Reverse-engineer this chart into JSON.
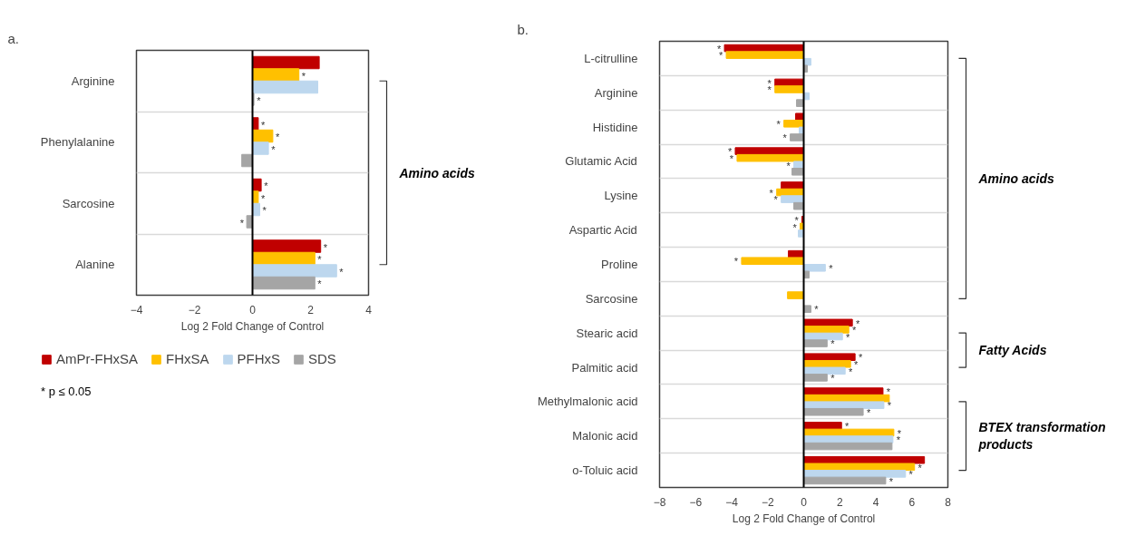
{
  "chart_data": [
    {
      "type": "bar",
      "orientation": "horizontal",
      "title": "a.",
      "xlabel": "Log 2 Fold Change of Control",
      "categories": [
        "Arginine",
        "Phenylalanine",
        "Sarcosine",
        "Alanine"
      ],
      "series": [
        {
          "name": "AmPr-FHxSA",
          "color": "#c00000",
          "values": [
            2.3,
            0.2,
            0.3,
            2.35
          ],
          "value_labels": [
            null,
            "*",
            "*",
            "*"
          ]
        },
        {
          "name": "FHxSA",
          "color": "#ffc000",
          "values": [
            1.6,
            0.7,
            0.2,
            2.15
          ],
          "value_labels": [
            "*",
            "*",
            "*",
            "*"
          ]
        },
        {
          "name": "PFHxS",
          "color": "#bdd7ee",
          "values": [
            2.25,
            0.55,
            0.25,
            2.9
          ],
          "value_labels": [
            null,
            "*",
            "*",
            "*"
          ]
        },
        {
          "name": "SDS",
          "color": "#a5a5a5",
          "values": [
            0.05,
            -0.37,
            -0.2,
            2.15
          ],
          "value_labels": [
            "*",
            null,
            "*",
            "*"
          ]
        }
      ],
      "xlim": [
        -4,
        4
      ],
      "xticks": [
        -4,
        -2,
        0,
        2,
        4
      ],
      "grid": "y",
      "legend": "bottom",
      "ref_lines": [
        {
          "axis": "x",
          "value": 0,
          "color": "#000000"
        }
      ],
      "annotations": [
        "Amino acids",
        "* p ≤ 0.05"
      ]
    },
    {
      "type": "bar",
      "orientation": "horizontal",
      "title": "b.",
      "xlabel": "Log 2 Fold Change of Control",
      "categories": [
        "L-citrulline",
        "Arginine",
        "Histidine",
        "Glutamic Acid",
        "Lysine",
        "Aspartic Acid",
        "Proline",
        "Sarcosine",
        "Stearic acid",
        "Palmitic acid",
        "Methylmalonic acid",
        "Malonic acid",
        "o-Toluic acid"
      ],
      "series": [
        {
          "color": "#c00000",
          "values": [
            -4.4,
            -1.6,
            -0.45,
            -3.8,
            -1.25,
            -0.1,
            -0.85,
            null,
            2.7,
            2.85,
            4.4,
            2.1,
            6.7
          ],
          "value_labels": [
            "*",
            "*",
            null,
            "*",
            null,
            "*",
            null,
            null,
            "*",
            "*",
            "*",
            "*",
            null
          ]
        },
        {
          "color": "#ffc000",
          "values": [
            -4.3,
            -1.6,
            -1.1,
            -3.7,
            -1.5,
            -0.2,
            -3.45,
            -0.9,
            2.5,
            2.6,
            4.75,
            5.0,
            6.15
          ],
          "value_labels": [
            "*",
            "*",
            "*",
            "*",
            "*",
            "*",
            "*",
            null,
            "*",
            "*",
            null,
            "*",
            "*"
          ]
        },
        {
          "color": "#bdd7ee",
          "values": [
            0.4,
            0.3,
            -0.25,
            -0.55,
            -1.25,
            -0.3,
            1.2,
            null,
            2.15,
            2.3,
            4.45,
            4.95,
            5.65
          ],
          "value_labels": [
            null,
            null,
            null,
            "*",
            "*",
            null,
            "*",
            null,
            "*",
            "*",
            "*",
            "*",
            "*"
          ]
        },
        {
          "color": "#a5a5a5",
          "values": [
            0.2,
            -0.4,
            -0.75,
            -0.65,
            -0.55,
            null,
            0.3,
            0.4,
            1.3,
            1.3,
            3.3,
            4.9,
            4.55
          ],
          "value_labels": [
            null,
            null,
            "*",
            null,
            null,
            null,
            null,
            "*",
            "*",
            "*",
            "*",
            null,
            "*"
          ]
        }
      ],
      "xlim": [
        -8,
        8
      ],
      "xticks": [
        -8,
        -6,
        -4,
        -2,
        0,
        2,
        4,
        6,
        8
      ],
      "grid": "y",
      "ref_lines": [
        {
          "axis": "x",
          "value": 0,
          "color": "#000000"
        }
      ],
      "annotations": [
        "Amino acids",
        "Fatty Acids",
        "BTEX transformation products"
      ]
    }
  ]
}
